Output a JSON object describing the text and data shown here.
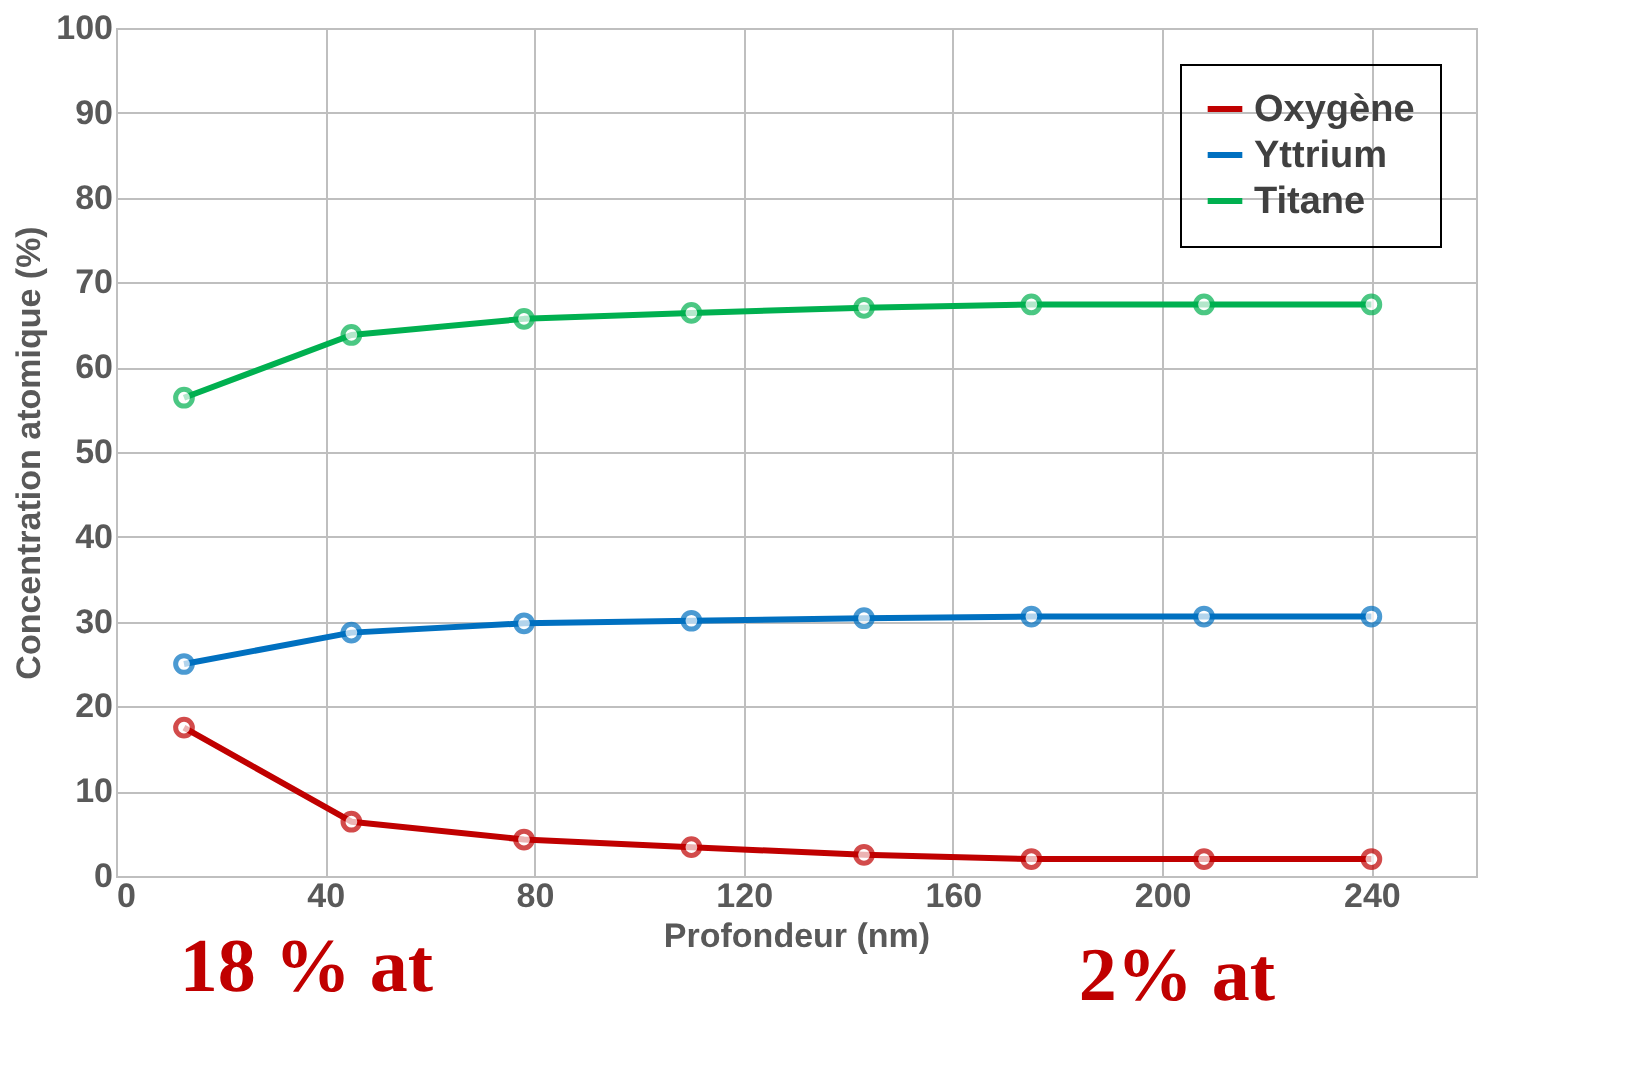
{
  "chart_data": {
    "type": "line",
    "xlabel": "Profondeur (nm)",
    "ylabel": "Concentration atomique  (%)",
    "x": [
      13,
      45,
      78,
      110,
      143,
      175,
      208,
      240
    ],
    "series": [
      {
        "name": "Oxygène",
        "color": "#c00000",
        "values": [
          17.5,
          6.4,
          4.3,
          3.4,
          2.5,
          2.0,
          2.0,
          2.0
        ]
      },
      {
        "name": "Yttrium",
        "color": "#0070c0",
        "values": [
          25.0,
          28.7,
          29.8,
          30.1,
          30.4,
          30.6,
          30.6,
          30.6
        ]
      },
      {
        "name": "Titane",
        "color": "#00b050",
        "values": [
          56.4,
          63.8,
          65.7,
          66.4,
          67.0,
          67.4,
          67.4,
          67.4
        ]
      }
    ],
    "xlim": [
      0,
      260
    ],
    "xticks": [
      0,
      40,
      80,
      120,
      160,
      200,
      240
    ],
    "ylim": [
      0,
      100
    ],
    "yticks": [
      0,
      10,
      20,
      30,
      40,
      50,
      60,
      70,
      80,
      90,
      100
    ],
    "grid": true,
    "legend": "top right",
    "marker": "circle",
    "line_style": "solid",
    "annotations": [
      "18 % at",
      "2% at"
    ]
  }
}
